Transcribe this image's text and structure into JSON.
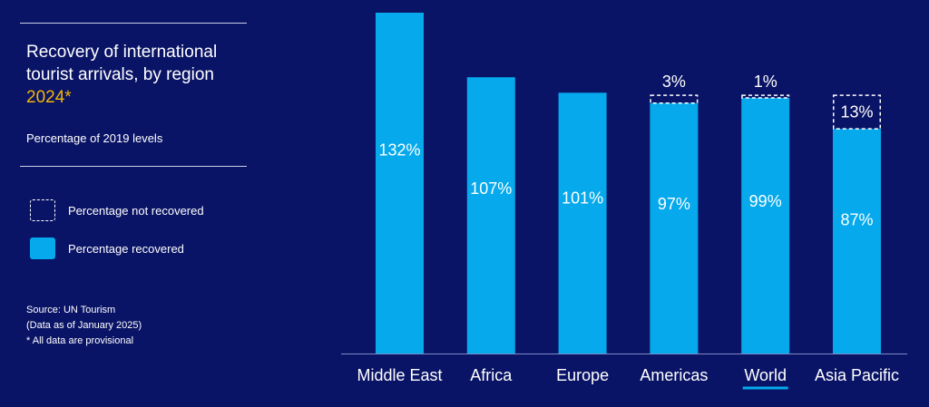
{
  "panel": {
    "title_line1": "Recovery of international",
    "title_line2": "tourist arrivals, by region",
    "title_year": "2024*",
    "subtitle": "Percentage of 2019 levels",
    "legend": [
      {
        "label": "Percentage not recovered"
      },
      {
        "label": "Percentage recovered"
      }
    ],
    "notes": [
      "Source: UN Tourism",
      "(Data as of January 2025)",
      "* All data are provisional"
    ]
  },
  "colors": {
    "background": "#0a1466",
    "bar": "#05a9ec",
    "text": "#ffffff",
    "highlight": "#f2b705"
  },
  "chart_data": {
    "type": "bar",
    "categories": [
      "Middle East",
      "Africa",
      "Europe",
      "Americas",
      "World",
      "Asia Pacific"
    ],
    "series": [
      {
        "name": "Percentage recovered",
        "values": [
          132,
          107,
          101,
          97,
          99,
          87
        ]
      },
      {
        "name": "Percentage not recovered",
        "values": [
          0,
          0,
          0,
          3,
          1,
          13
        ]
      }
    ],
    "value_labels": [
      "132%",
      "107%",
      "101%",
      "97%",
      "99%",
      "87%"
    ],
    "gap_labels": [
      "",
      "",
      "",
      "3%",
      "1%",
      "13%"
    ],
    "highlighted_category": "World",
    "ylim": [
      0,
      132
    ],
    "legend_position": "left"
  }
}
